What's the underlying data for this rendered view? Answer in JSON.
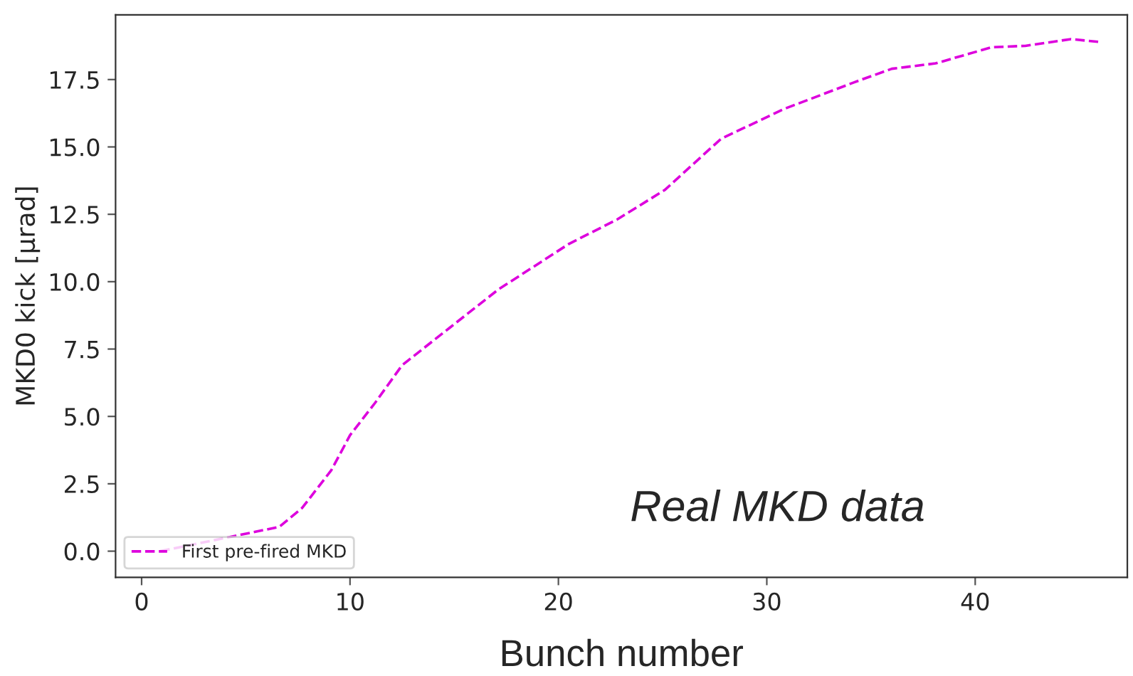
{
  "chart_data": {
    "type": "line",
    "xlabel": "Bunch number",
    "ylabel": "MKD0 kick [μrad]",
    "annotations": [
      "Real MKD data"
    ],
    "x": [
      0.9,
      6.6,
      7.7,
      9.1,
      10,
      11.2,
      12.5,
      14.8,
      17.1,
      20.5,
      22.8,
      25.1,
      27.8,
      30.8,
      34.2,
      36,
      38.1,
      40.8,
      42.4,
      44.6,
      45.9
    ],
    "series": [
      {
        "name": "First pre-fired MKD",
        "color": "#dd00dd",
        "values": [
          0,
          0.9,
          1.6,
          3.0,
          4.3,
          5.5,
          6.9,
          8.3,
          9.7,
          11.4,
          12.3,
          13.4,
          15.3,
          16.4,
          17.4,
          17.9,
          18.1,
          18.7,
          18.75,
          19.0,
          18.9
        ]
      }
    ],
    "xlim": [
      -1.25,
      47.3
    ],
    "ylim": [
      -0.97,
      19.9
    ],
    "xticks": [
      0,
      10,
      20,
      30,
      40
    ],
    "yticks": [
      {
        "value": 0,
        "label": "0.0"
      },
      {
        "value": 2.5,
        "label": "2.5"
      },
      {
        "value": 5,
        "label": "5.0"
      },
      {
        "value": 7.5,
        "label": "7.5"
      },
      {
        "value": 10,
        "label": "10.0"
      },
      {
        "value": 12.5,
        "label": "12.5"
      },
      {
        "value": 15,
        "label": "15.0"
      },
      {
        "value": 17.5,
        "label": "17.5"
      }
    ],
    "line_style": "dashed",
    "marker": "none",
    "grid": false,
    "legend": "bottom left"
  }
}
